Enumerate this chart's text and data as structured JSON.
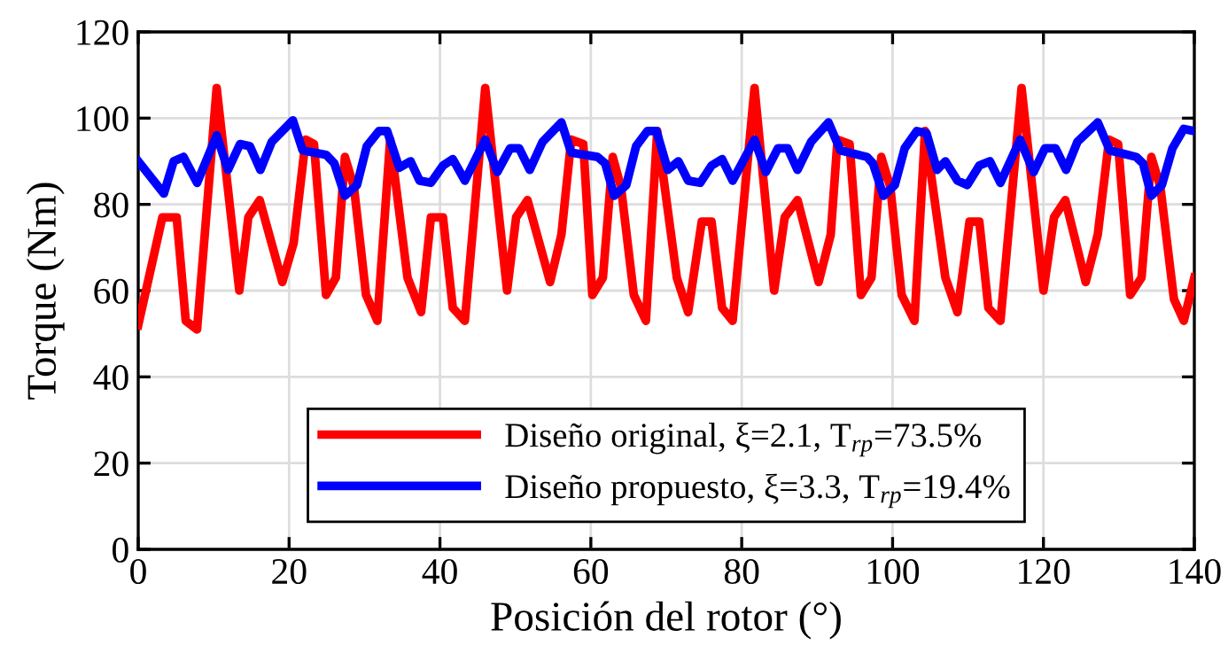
{
  "chart_data": {
    "type": "line",
    "xlabel": "Posición del rotor (°)",
    "ylabel": "Torque (Nm)",
    "xlim": [
      0,
      140
    ],
    "ylim": [
      0,
      120
    ],
    "xticks": [
      0,
      20,
      40,
      60,
      80,
      100,
      120,
      140
    ],
    "yticks": [
      0,
      20,
      40,
      60,
      80,
      100,
      120
    ],
    "grid": true,
    "legend": "bottom",
    "line_style": "solid",
    "marker": "none",
    "series": [
      {
        "name": "Diseño original, ξ=2.1, T$_{rp}$=73.5%",
        "color": "#ff0000",
        "x": [
          0,
          3.2,
          5.1,
          6.3,
          7.8,
          10.4,
          13.4,
          14.6,
          16.1,
          19.1,
          20.6,
          22.2,
          23.3,
          24.9,
          26.2,
          27.4,
          28.6,
          30.2,
          31.7,
          33.4,
          35.7,
          37.5,
          38.8,
          40.4,
          41.7,
          43.3,
          46.0,
          48.9,
          50.1,
          51.6,
          54.6,
          56.1,
          57.4,
          59.0,
          60.2,
          61.6,
          62.9,
          64.0,
          65.7,
          67.3,
          68.8,
          71.4,
          72.9,
          74.7,
          76.0,
          77.4,
          78.8,
          81.7,
          84.3,
          85.7,
          87.4,
          90.2,
          91.8,
          92.7,
          94.3,
          95.8,
          97.2,
          98.5,
          99.7,
          101.2,
          102.9,
          104.3,
          107.0,
          108.6,
          110.2,
          111.5,
          112.7,
          114.3,
          117.1,
          120.0,
          121.4,
          122.9,
          125.6,
          127.2,
          128.7,
          129.9,
          131.5,
          133.0,
          134.3,
          135.5,
          137.3,
          138.6,
          140
        ],
        "values": [
          52,
          77,
          77,
          53,
          51,
          107,
          60,
          77,
          81,
          62,
          71,
          95,
          94,
          59,
          63,
          91,
          84,
          59,
          53,
          95,
          63,
          55,
          77,
          77,
          56,
          53,
          107,
          60,
          77,
          81,
          62,
          73,
          95,
          94,
          59,
          63,
          91,
          84,
          59,
          53,
          97,
          63,
          55,
          76,
          76,
          56,
          53,
          107,
          60,
          77,
          81,
          62,
          73,
          95,
          94,
          59,
          63,
          91,
          84,
          59,
          53,
          97,
          63,
          55,
          76,
          76,
          56,
          53,
          107,
          60,
          77,
          81,
          62,
          73,
          95,
          94,
          59,
          63,
          91,
          84,
          58,
          53,
          63
        ]
      },
      {
        "name": "Diseño propuesto, ξ=3.3, T$_{rp}$=19.4%",
        "color": "#0000ff",
        "x": [
          0,
          3.4,
          4.7,
          6.0,
          7.8,
          10.4,
          11.9,
          13.5,
          14.8,
          16.2,
          17.7,
          20.5,
          21.8,
          24.9,
          26.0,
          27.4,
          29.0,
          30.3,
          31.9,
          33.0,
          34.6,
          36.1,
          37.3,
          38.8,
          40.4,
          41.7,
          43.3,
          46.0,
          47.6,
          49.3,
          50.5,
          51.9,
          53.6,
          56.1,
          57.4,
          60.9,
          61.9,
          63.1,
          64.7,
          66.0,
          67.5,
          68.7,
          70.2,
          71.6,
          72.9,
          74.5,
          76.0,
          77.4,
          78.8,
          81.7,
          83.2,
          84.8,
          86.1,
          87.4,
          89.2,
          91.5,
          93.1,
          96.6,
          97.4,
          98.8,
          100.3,
          101.6,
          103.2,
          104.5,
          105.9,
          107.0,
          108.6,
          109.9,
          111.5,
          112.9,
          114.3,
          116.9,
          118.7,
          120.2,
          121.6,
          123.0,
          124.5,
          127.2,
          128.8,
          132.3,
          133.2,
          134.3,
          135.7,
          137.1,
          138.6,
          140
        ],
        "values": [
          90,
          82.5,
          90,
          91,
          85,
          96,
          88,
          94,
          93.5,
          88,
          94.5,
          99.5,
          92.5,
          91.5,
          89.5,
          82,
          84.5,
          93.5,
          97,
          97,
          88.5,
          90,
          85.5,
          85,
          89,
          90.5,
          85.5,
          95,
          87.5,
          93,
          93,
          88,
          94.5,
          99,
          92,
          91,
          89.5,
          82,
          84.5,
          93.5,
          97,
          97,
          88,
          90,
          85.5,
          85,
          89,
          90.5,
          85.5,
          95,
          87.5,
          93,
          93,
          88,
          94.5,
          99,
          92.5,
          91,
          89.5,
          82,
          84.5,
          93,
          97,
          96.5,
          88,
          90,
          85.5,
          84.5,
          89,
          90,
          85,
          95,
          87.5,
          93,
          93,
          88,
          94.5,
          99,
          92.5,
          91,
          89.5,
          82,
          84.5,
          93,
          97.5,
          97
        ]
      }
    ]
  }
}
